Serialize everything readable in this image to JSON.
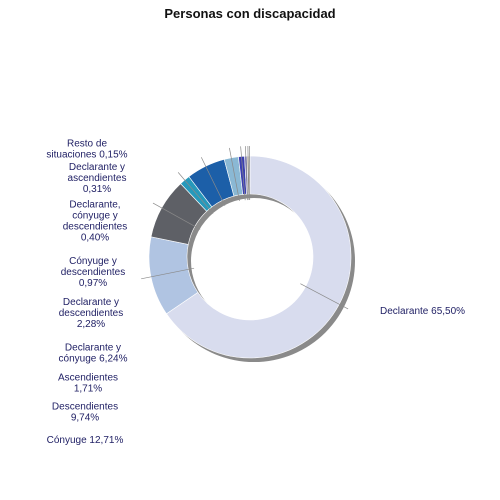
{
  "chart_data": {
    "type": "pie",
    "style": "donut",
    "title": "Personas con discapacidad",
    "legend_position": "left",
    "slices": [
      {
        "name": "Declarante",
        "value": 65.5,
        "label_lines": [
          "Declarante 65,50%"
        ],
        "color": "#d8dcee"
      },
      {
        "name": "Cónyuge",
        "value": 12.71,
        "label_lines": [
          "Cónyuge 12,71%"
        ],
        "color": "#b0c4e2"
      },
      {
        "name": "Descendientes",
        "value": 9.74,
        "label_lines": [
          "Descendientes",
          "9,74%"
        ],
        "color": "#5e6066"
      },
      {
        "name": "Ascendientes",
        "value": 1.71,
        "label_lines": [
          "Ascendientes",
          "1,71%"
        ],
        "color": "#2699bb"
      },
      {
        "name": "Declarante y cónyuge",
        "value": 6.24,
        "label_lines": [
          "Declarante y",
          "cónyuge 6,24%"
        ],
        "color": "#1c5fa8"
      },
      {
        "name": "Declarante y descendientes",
        "value": 2.28,
        "label_lines": [
          "Declarante y",
          "descendientes",
          "2,28%"
        ],
        "color": "#8ab8d4"
      },
      {
        "name": "Cónyuge y descendientes",
        "value": 0.97,
        "label_lines": [
          "Cónyuge y",
          "descendientes",
          "0,97%"
        ],
        "color": "#3b3fb0"
      },
      {
        "name": "Declarante, cónyuge y descendientes",
        "value": 0.4,
        "label_lines": [
          "Declarante,",
          "cónyuge y",
          "descendientes",
          "0,40%"
        ],
        "color": "#7a7abf"
      },
      {
        "name": "Declarante y ascendientes",
        "value": 0.31,
        "label_lines": [
          "Declarante y",
          "ascendientes",
          "0,31%"
        ],
        "color": "#a08c6a"
      },
      {
        "name": "Resto de situaciones",
        "value": 0.15,
        "label_lines": [
          "Resto de",
          "situaciones 0,15%"
        ],
        "color": "#6b6b6b"
      }
    ]
  }
}
